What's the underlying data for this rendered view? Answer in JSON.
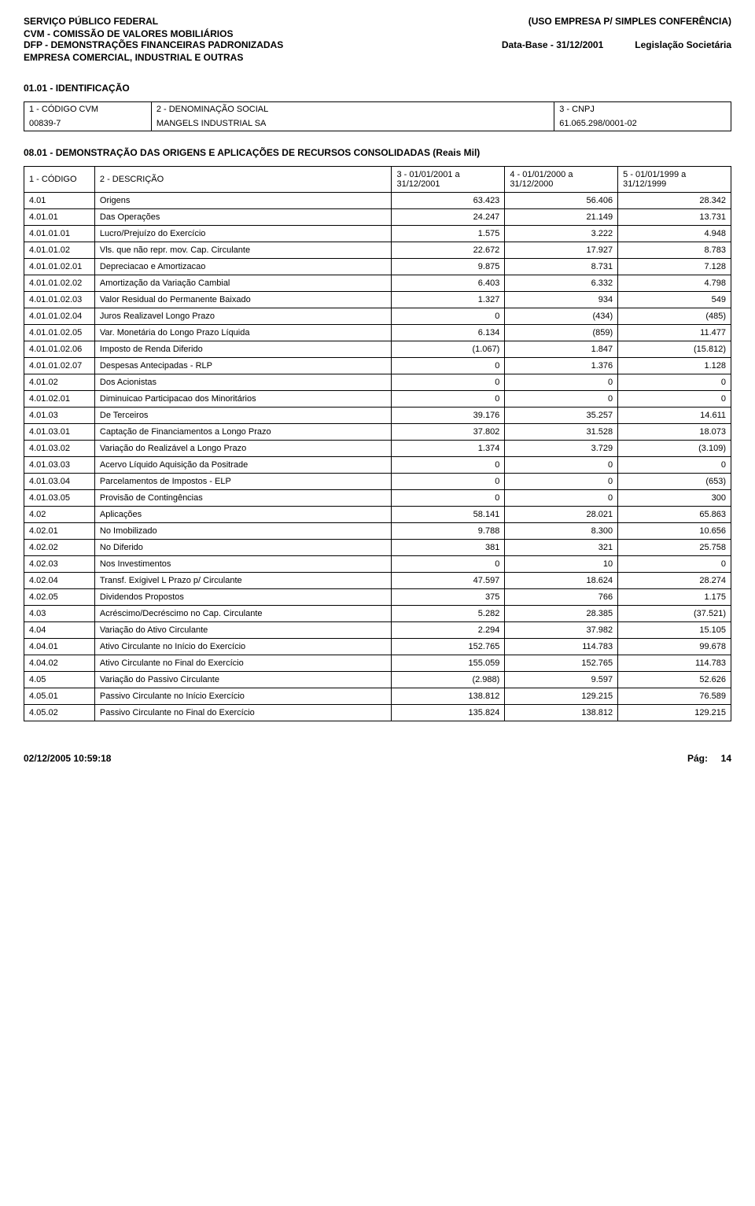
{
  "header": {
    "line1_left": "SERVIÇO PÚBLICO FEDERAL",
    "line1_right": "(USO EMPRESA P/ SIMPLES CONFERÊNCIA)",
    "line2": "CVM - COMISSÃO DE VALORES MOBILIÁRIOS",
    "line3_left": "DFP - DEMONSTRAÇÕES FINANCEIRAS PADRONIZADAS",
    "line3_mid": "Data-Base - 31/12/2001",
    "line3_right": "Legislação Societária",
    "line4": "EMPRESA COMERCIAL, INDUSTRIAL E OUTRAS"
  },
  "identificacao": {
    "title": "01.01 - IDENTIFICAÇÃO",
    "col1_label": "1 - CÓDIGO CVM",
    "col2_label": "2 - DENOMINAÇÃO SOCIAL",
    "col3_label": "3 - CNPJ",
    "col1_value": "00839-7",
    "col2_value": "MANGELS INDUSTRIAL SA",
    "col3_value": "61.065.298/0001-02"
  },
  "subtitle": "08.01 - DEMONSTRAÇÃO DAS ORIGENS E APLICAÇÕES DE RECURSOS CONSOLIDADAS (Reais Mil)",
  "columns": {
    "c1": "1 - CÓDIGO",
    "c2": "2 - DESCRIÇÃO",
    "c3": "3 - 01/01/2001 a 31/12/2001",
    "c4": "4 - 01/01/2000 a 31/12/2000",
    "c5": "5 - 01/01/1999 a 31/12/1999"
  },
  "rows": [
    {
      "code": "4.01",
      "desc": "Origens",
      "v1": "63.423",
      "v2": "56.406",
      "v3": "28.342"
    },
    {
      "code": "4.01.01",
      "desc": "Das Operações",
      "v1": "24.247",
      "v2": "21.149",
      "v3": "13.731"
    },
    {
      "code": "4.01.01.01",
      "desc": "Lucro/Prejuízo do Exercício",
      "v1": "1.575",
      "v2": "3.222",
      "v3": "4.948"
    },
    {
      "code": "4.01.01.02",
      "desc": "Vls. que não repr. mov. Cap. Circulante",
      "v1": "22.672",
      "v2": "17.927",
      "v3": "8.783"
    },
    {
      "code": "4.01.01.02.01",
      "desc": "Depreciacao e Amortizacao",
      "v1": "9.875",
      "v2": "8.731",
      "v3": "7.128"
    },
    {
      "code": "4.01.01.02.02",
      "desc": "Amortização da Variação Cambial",
      "v1": "6.403",
      "v2": "6.332",
      "v3": "4.798"
    },
    {
      "code": "4.01.01.02.03",
      "desc": "Valor Residual do Permanente Baixado",
      "v1": "1.327",
      "v2": "934",
      "v3": "549"
    },
    {
      "code": "4.01.01.02.04",
      "desc": "Juros Realizavel Longo Prazo",
      "v1": "0",
      "v2": "(434)",
      "v3": "(485)"
    },
    {
      "code": "4.01.01.02.05",
      "desc": "Var. Monetária do Longo Prazo Líquida",
      "v1": "6.134",
      "v2": "(859)",
      "v3": "11.477"
    },
    {
      "code": "4.01.01.02.06",
      "desc": "Imposto de Renda Diferido",
      "v1": "(1.067)",
      "v2": "1.847",
      "v3": "(15.812)"
    },
    {
      "code": "4.01.01.02.07",
      "desc": "Despesas Antecipadas - RLP",
      "v1": "0",
      "v2": "1.376",
      "v3": "1.128"
    },
    {
      "code": "4.01.02",
      "desc": "Dos Acionistas",
      "v1": "0",
      "v2": "0",
      "v3": "0"
    },
    {
      "code": "4.01.02.01",
      "desc": "Diminuicao Participacao dos Minoritários",
      "v1": "0",
      "v2": "0",
      "v3": "0"
    },
    {
      "code": "4.01.03",
      "desc": "De Terceiros",
      "v1": "39.176",
      "v2": "35.257",
      "v3": "14.611"
    },
    {
      "code": "4.01.03.01",
      "desc": "Captação de Financiamentos a Longo Prazo",
      "v1": "37.802",
      "v2": "31.528",
      "v3": "18.073"
    },
    {
      "code": "4.01.03.02",
      "desc": "Variação do Realizável a Longo Prazo",
      "v1": "1.374",
      "v2": "3.729",
      "v3": "(3.109)"
    },
    {
      "code": "4.01.03.03",
      "desc": "Acervo Líquido Aquisição da Positrade",
      "v1": "0",
      "v2": "0",
      "v3": "0"
    },
    {
      "code": "4.01.03.04",
      "desc": "Parcelamentos de Impostos - ELP",
      "v1": "0",
      "v2": "0",
      "v3": "(653)"
    },
    {
      "code": "4.01.03.05",
      "desc": "Provisão de Contingências",
      "v1": "0",
      "v2": "0",
      "v3": "300"
    },
    {
      "code": "4.02",
      "desc": "Aplicações",
      "v1": "58.141",
      "v2": "28.021",
      "v3": "65.863"
    },
    {
      "code": "4.02.01",
      "desc": "No Imobilizado",
      "v1": "9.788",
      "v2": "8.300",
      "v3": "10.656"
    },
    {
      "code": "4.02.02",
      "desc": "No Diferido",
      "v1": "381",
      "v2": "321",
      "v3": "25.758"
    },
    {
      "code": "4.02.03",
      "desc": "Nos Investimentos",
      "v1": "0",
      "v2": "10",
      "v3": "0"
    },
    {
      "code": "4.02.04",
      "desc": "Transf. Exígivel L Prazo p/ Circulante",
      "v1": "47.597",
      "v2": "18.624",
      "v3": "28.274"
    },
    {
      "code": "4.02.05",
      "desc": "Dividendos Propostos",
      "v1": "375",
      "v2": "766",
      "v3": "1.175"
    },
    {
      "code": "4.03",
      "desc": "Acréscimo/Decréscimo no Cap. Circulante",
      "v1": "5.282",
      "v2": "28.385",
      "v3": "(37.521)"
    },
    {
      "code": "4.04",
      "desc": "Variação do Ativo Circulante",
      "v1": "2.294",
      "v2": "37.982",
      "v3": "15.105"
    },
    {
      "code": "4.04.01",
      "desc": "Ativo Circulante no Início do Exercício",
      "v1": "152.765",
      "v2": "114.783",
      "v3": "99.678"
    },
    {
      "code": "4.04.02",
      "desc": "Ativo Circulante no Final do Exercício",
      "v1": "155.059",
      "v2": "152.765",
      "v3": "114.783"
    },
    {
      "code": "4.05",
      "desc": "Variação do Passivo Circulante",
      "v1": "(2.988)",
      "v2": "9.597",
      "v3": "52.626"
    },
    {
      "code": "4.05.01",
      "desc": "Passivo Circulante no Início Exercício",
      "v1": "138.812",
      "v2": "129.215",
      "v3": "76.589"
    },
    {
      "code": "4.05.02",
      "desc": "Passivo Circulante no Final do Exercício",
      "v1": "135.824",
      "v2": "138.812",
      "v3": "129.215"
    }
  ],
  "footer": {
    "left": "02/12/2005 10:59:18",
    "right_label": "Pág:",
    "right_value": "14"
  }
}
